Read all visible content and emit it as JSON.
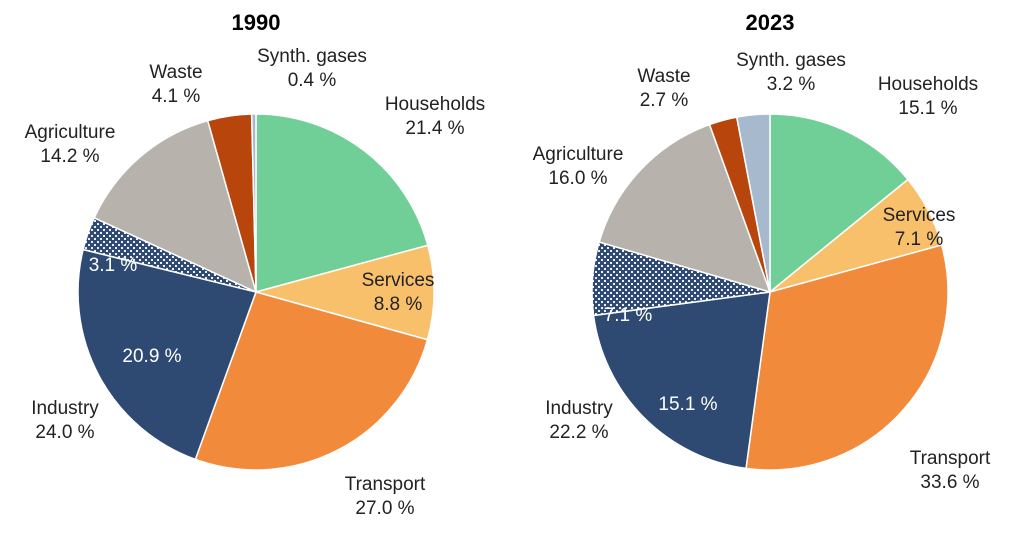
{
  "chart_data": [
    {
      "type": "pie",
      "title": "1990",
      "unit": "%",
      "slices": [
        {
          "name": "Households",
          "value": 21.4,
          "value_label": "21.4 %",
          "color": "#6fcf97"
        },
        {
          "name": "Services",
          "value": 8.8,
          "value_label": "8.8 %",
          "color": "#f9c06b"
        },
        {
          "name": "Transport",
          "value": 27.0,
          "value_label": "27.0 %",
          "color": "#f28a3c"
        },
        {
          "name": "Industry",
          "value": 24.0,
          "value_label": "24.0 %",
          "color": "#2e4a73",
          "sub": {
            "value": 20.9,
            "value_label": "20.9 %"
          }
        },
        {
          "name": "",
          "value": 3.1,
          "value_label": "3.1 %",
          "color": "#2e4a73",
          "pattern": "dotted"
        },
        {
          "name": "Agriculture",
          "value": 14.2,
          "value_label": "14.2 %",
          "color": "#b8b2ad"
        },
        {
          "name": "Waste",
          "value": 4.1,
          "value_label": "4.1 %",
          "color": "#b8460c"
        },
        {
          "name": "Synth. gases",
          "value": 0.4,
          "value_label": "0.4 %",
          "color": "#a7b9cc"
        }
      ]
    },
    {
      "type": "pie",
      "title": "2023",
      "unit": "%",
      "slices": [
        {
          "name": "Households",
          "value": 15.1,
          "value_label": "15.1 %",
          "color": "#6fcf97"
        },
        {
          "name": "Services",
          "value": 7.1,
          "value_label": "7.1 %",
          "color": "#f9c06b"
        },
        {
          "name": "Transport",
          "value": 33.6,
          "value_label": "33.6 %",
          "color": "#f28a3c"
        },
        {
          "name": "Industry",
          "value": 22.2,
          "value_label": "22.2 %",
          "color": "#2e4a73",
          "sub": {
            "value": 15.1,
            "value_label": "15.1 %"
          }
        },
        {
          "name": "",
          "value": 7.1,
          "value_label": "7.1 %",
          "color": "#2e4a73",
          "pattern": "dotted"
        },
        {
          "name": "Agriculture",
          "value": 16.0,
          "value_label": "16.0 %",
          "color": "#b8b2ad"
        },
        {
          "name": "Waste",
          "value": 2.7,
          "value_label": "2.7 %",
          "color": "#b8460c"
        },
        {
          "name": "Synth. gases",
          "value": 3.2,
          "value_label": "3.2 %",
          "color": "#a7b9cc"
        }
      ]
    }
  ]
}
